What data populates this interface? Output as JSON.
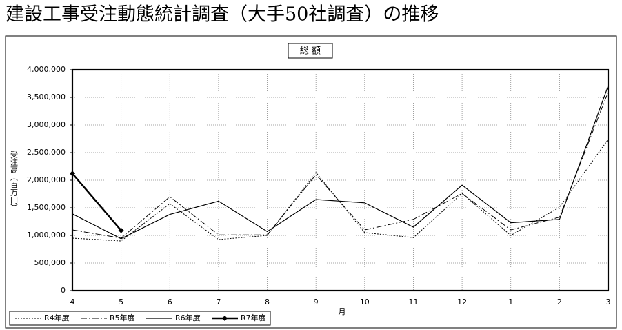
{
  "chart_data": {
    "type": "line",
    "title": "建設工事受注動態統計調査（大手50社調査）の推移",
    "subtitle": "総 額",
    "y_label": "受注高（百万円）",
    "x_label": "月",
    "categories": [
      "4",
      "5",
      "6",
      "7",
      "8",
      "9",
      "10",
      "11",
      "12",
      "1",
      "2",
      "3"
    ],
    "ylim": [
      0,
      4000000
    ],
    "yticks": [
      0,
      {
        "value": 500000,
        "label": "500,000"
      },
      {
        "value": 1000000,
        "label": "1,000,000"
      },
      {
        "value": 1500000,
        "label": "1,500,000"
      },
      {
        "value": 2000000,
        "label": "2,000,000"
      },
      {
        "value": 2500000,
        "label": "2,500,000"
      },
      {
        "value": 3000000,
        "label": "3,000,000"
      },
      {
        "value": 3500000,
        "label": "3,500,000"
      },
      {
        "value": 4000000,
        "label": "4,000,000"
      }
    ],
    "grid": true,
    "legend": "bottom-left",
    "series": [
      {
        "name": "R4年度",
        "color": "#000000",
        "line_style": "dotted",
        "values": [
          950000,
          900000,
          1575000,
          925000,
          1000000,
          2140000,
          1050000,
          960000,
          1760000,
          1000000,
          1510000,
          2740000
        ]
      },
      {
        "name": "R5年度",
        "color": "#000000",
        "line_style": "dashdot",
        "values": [
          1100000,
          950000,
          1700000,
          1010000,
          1010000,
          2100000,
          1100000,
          1290000,
          1760000,
          1100000,
          1330000,
          3600000
        ]
      },
      {
        "name": "R6年度",
        "color": "#000000",
        "line_style": "solid",
        "values": [
          1390000,
          940000,
          1380000,
          1620000,
          1070000,
          1650000,
          1590000,
          1150000,
          1910000,
          1230000,
          1290000,
          3710000
        ]
      },
      {
        "name": "R7年度",
        "color": "#000000",
        "line_style": "bold-marker",
        "values": [
          2120000,
          1090000,
          null,
          null,
          null,
          null,
          null,
          null,
          null,
          null,
          null,
          null
        ]
      }
    ]
  }
}
